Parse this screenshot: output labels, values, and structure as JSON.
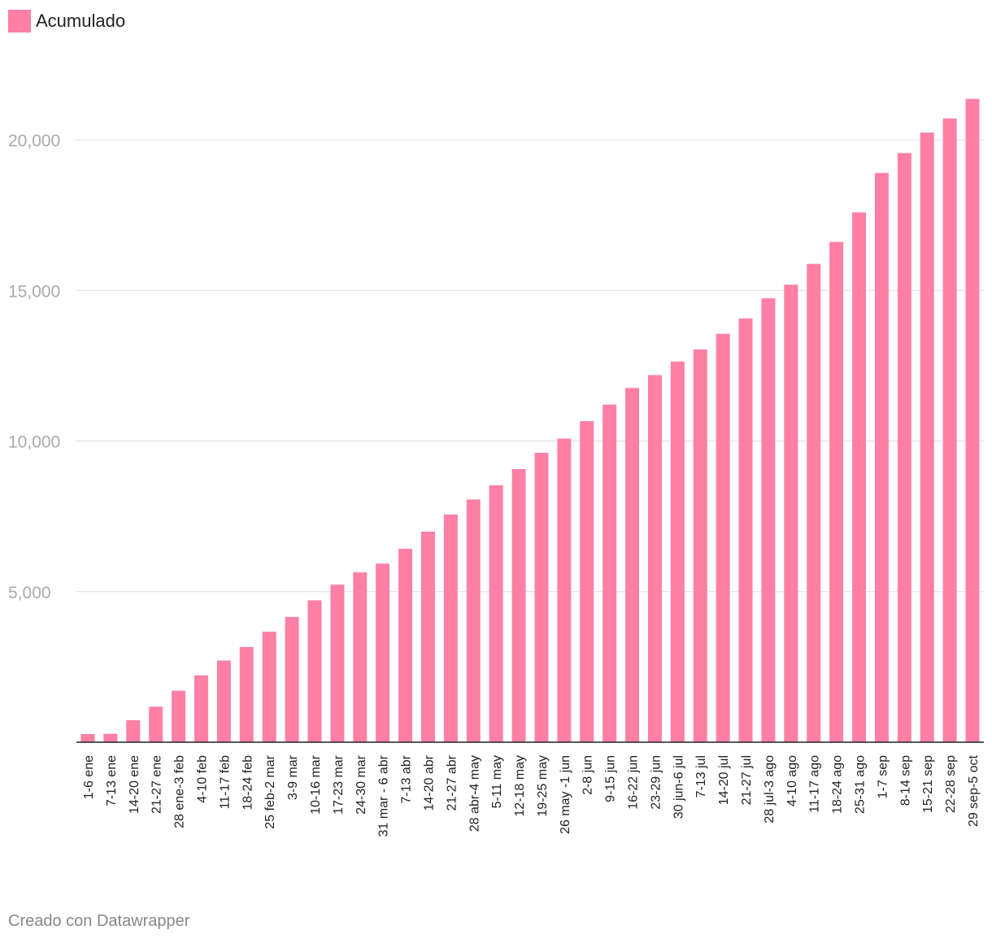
{
  "legend": {
    "label": "Acumulado",
    "color": "#ff7fa5"
  },
  "footer": {
    "text": "Creado con Datawrapper"
  },
  "chart_data": {
    "type": "bar",
    "title": "",
    "xlabel": "",
    "ylabel": "",
    "ylim": [
      0,
      23000
    ],
    "yticks": [
      5000,
      10000,
      15000,
      20000
    ],
    "ytick_labels": [
      "5,000",
      "10,000",
      "15,000",
      "20,000"
    ],
    "grid": true,
    "legend_position": "top-left",
    "categories": [
      "1-6 ene",
      "7-13 ene",
      "14-20 ene",
      "21-27 ene",
      "28 ene-3 feb",
      "4-10 feb",
      "11-17 feb",
      "18-24 feb",
      "25 feb-2 mar",
      "3-9 mar",
      "10-16 mar",
      "17-23 mar",
      "24-30 mar",
      "31 mar - 6 abr",
      "7-13 abr",
      "14-20 abr",
      "21-27 abr",
      "28 abr-4 may",
      "5-11 may",
      "12-18 may",
      "19-25 may",
      "26 may -1 jun",
      "2-8 jun",
      "9-15 jun",
      "16-22 jun",
      "23-29 jun",
      "30 jun-6 jul",
      "7-13 jul",
      "14-20 jul",
      "21-27 jul",
      "28 jul-3 ago",
      "4-10 ago",
      "11-17 ago",
      "18-24 ago",
      "25-31 ago",
      "1-7 sep",
      "8-14 sep",
      "15-21 sep",
      "22-28 sep",
      "29 sep-5 oct"
    ],
    "series": [
      {
        "name": "Acumulado",
        "color": "#ff7fa5",
        "values": [
          270,
          280,
          730,
          1180,
          1710,
          2220,
          2710,
          3160,
          3670,
          4160,
          4710,
          5230,
          5640,
          5930,
          6420,
          6990,
          7560,
          8060,
          8530,
          9070,
          9610,
          10080,
          10660,
          11210,
          11760,
          12190,
          12640,
          13040,
          13560,
          14070,
          14740,
          15190,
          15880,
          16610,
          17590,
          18900,
          19560,
          20240,
          20710,
          21360
        ]
      }
    ]
  }
}
